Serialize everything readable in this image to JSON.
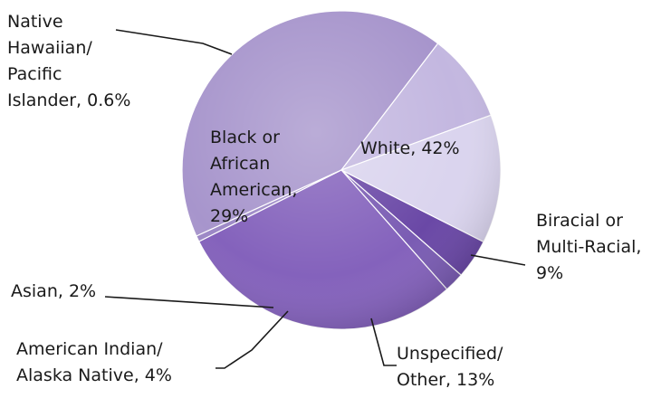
{
  "chart_data": {
    "type": "pie",
    "title": "",
    "slices": [
      {
        "label_lines": [
          "White, 42%"
        ],
        "category": "White",
        "value": 42,
        "color": "#a795cc",
        "label_color": "#1a1a1a"
      },
      {
        "label_lines": [
          "Biracial or",
          "Multi-Racial,",
          "9%"
        ],
        "category": "Biracial or Multi-Racial",
        "value": 9,
        "color": "#c3b7e0",
        "label_color": "#1a1a1a"
      },
      {
        "label_lines": [
          "Unspecified/",
          "Other, 13%"
        ],
        "category": "Unspecified/Other",
        "value": 13,
        "color": "#dad4ee",
        "label_color": "#1a1a1a"
      },
      {
        "label_lines": [
          "American Indian/",
          "Alaska Native, 4%"
        ],
        "category": "American Indian/Alaska Native",
        "value": 4,
        "color": "#6a48a6",
        "label_color": "#1a1a1a"
      },
      {
        "label_lines": [
          "Asian, 2%"
        ],
        "category": "Asian",
        "value": 2,
        "color": "#7a5cb3",
        "label_color": "#1a1a1a"
      },
      {
        "label_lines": [
          "Black or",
          "African",
          "American,",
          "29%"
        ],
        "category": "Black or African American",
        "value": 29,
        "color": "#8462bc",
        "label_color": "#ffffff"
      },
      {
        "label_lines": [
          "Native",
          "Hawaiian/",
          "Pacific",
          "Islander, 0.6%"
        ],
        "category": "Native Hawaiian/Pacific Islander",
        "value": 0.6,
        "color": "#9c88c6",
        "label_color": "#1a1a1a"
      }
    ]
  }
}
